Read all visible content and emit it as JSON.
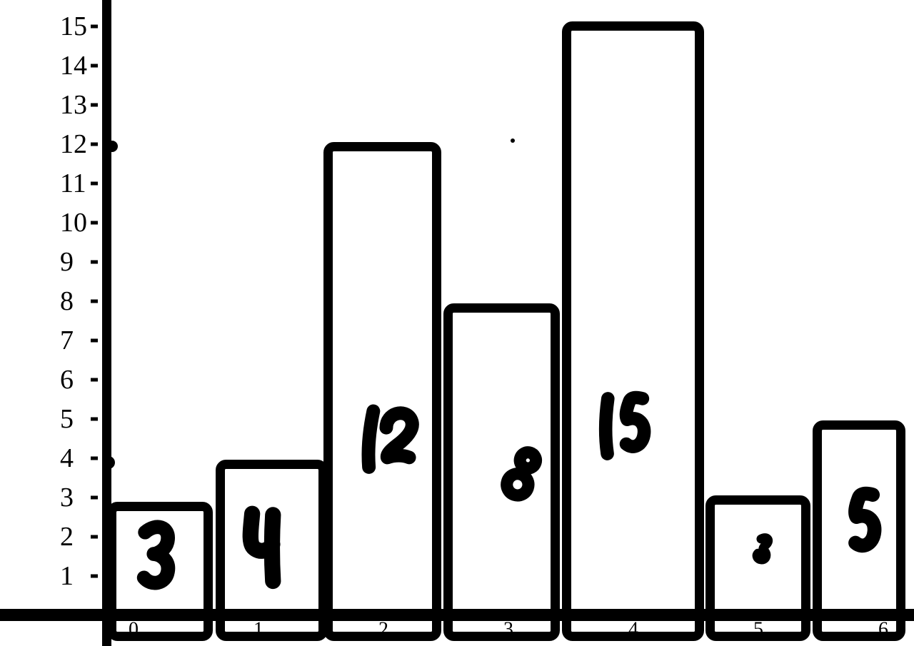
{
  "figure": {
    "background_color": "#ffffff",
    "ink_color": "#000000"
  },
  "chart_data": {
    "type": "bar",
    "style": "hand-drawn thick marker bars over printed axes",
    "title": "",
    "xlabel": "",
    "ylabel": "",
    "categories": [
      "0",
      "1",
      "2",
      "3",
      "4",
      "5",
      "6"
    ],
    "values": [
      3,
      4,
      12,
      8,
      15,
      3,
      5
    ],
    "bar_value_labels": [
      "3",
      "4",
      "12",
      "8",
      "15",
      "3",
      "5"
    ],
    "ylim": [
      0,
      15.5
    ],
    "yticks": [
      1,
      2,
      3,
      4,
      5,
      6,
      7,
      8,
      9,
      10,
      11,
      12,
      13,
      14,
      15
    ],
    "xticks": [
      "0",
      "1",
      "2",
      "3",
      "4",
      "5",
      "6"
    ],
    "grid": false,
    "legend_position": "none"
  }
}
